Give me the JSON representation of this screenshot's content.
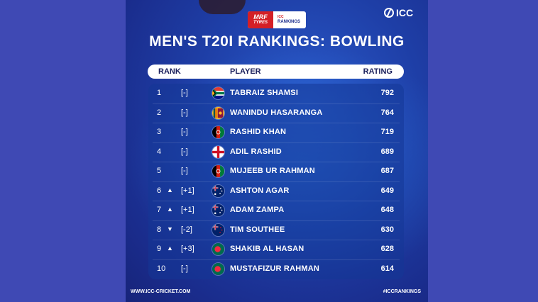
{
  "brand": {
    "sponsor_main": "MRF",
    "sponsor_sub": "TYRES",
    "rankings_top": "ICC",
    "rankings_label": "RANKINGS",
    "icc": "ICC"
  },
  "title": "MEN'S T20I RANKINGS: BOWLING",
  "headers": {
    "rank": "RANK",
    "player": "PLAYER",
    "rating": "RATING"
  },
  "rows": [
    {
      "pos": "1",
      "arrow": "",
      "move": "[-]",
      "flag": "za-flag-icon",
      "name": "TABRAIZ SHAMSI",
      "rating": "792"
    },
    {
      "pos": "2",
      "arrow": "",
      "move": "[-]",
      "flag": "lk-flag-icon",
      "name": "WANINDU HASARANGA",
      "rating": "764"
    },
    {
      "pos": "3",
      "arrow": "",
      "move": "[-]",
      "flag": "af-flag-icon",
      "name": "RASHID KHAN",
      "rating": "719"
    },
    {
      "pos": "4",
      "arrow": "",
      "move": "[-]",
      "flag": "en-flag-icon",
      "name": "ADIL RASHID",
      "rating": "689"
    },
    {
      "pos": "5",
      "arrow": "",
      "move": "[-]",
      "flag": "af-flag-icon",
      "name": "MUJEEB UR RAHMAN",
      "rating": "687"
    },
    {
      "pos": "6",
      "arrow": "▲",
      "move": "[+1]",
      "flag": "au-flag-icon",
      "name": "ASHTON AGAR",
      "rating": "649"
    },
    {
      "pos": "7",
      "arrow": "▲",
      "move": "[+1]",
      "flag": "au-flag-icon",
      "name": "ADAM ZAMPA",
      "rating": "648"
    },
    {
      "pos": "8",
      "arrow": "▼",
      "move": "[-2]",
      "flag": "nz-flag-icon",
      "name": "TIM SOUTHEE",
      "rating": "630"
    },
    {
      "pos": "9",
      "arrow": "▲",
      "move": "[+3]",
      "flag": "bd-flag-icon",
      "name": "SHAKIB AL HASAN",
      "rating": "628"
    },
    {
      "pos": "10",
      "arrow": "",
      "move": "[-]",
      "flag": "bd-flag-icon",
      "name": "MUSTAFIZUR RAHMAN",
      "rating": "614"
    }
  ],
  "footer": {
    "left": "WWW.ICC-CRICKET.COM",
    "right": "#ICCRANKINGS"
  },
  "colors": {
    "page_bg": "#3f49b4",
    "card_bg": "#1e3ea6",
    "accent_red": "#d41f26"
  }
}
